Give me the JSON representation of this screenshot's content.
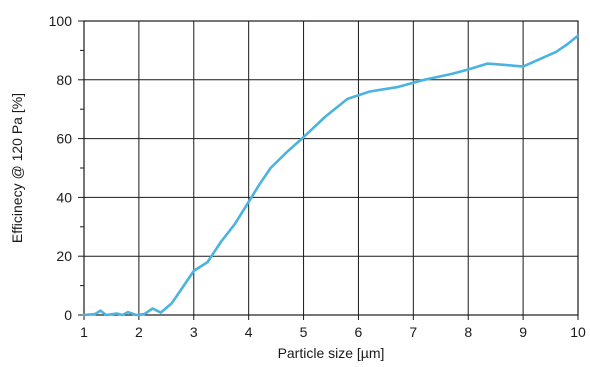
{
  "chart_data": {
    "type": "line",
    "title": "",
    "xlabel": "Particle size [µm]",
    "ylabel": "Efficinecy @ 120 Pa [%]",
    "xlim": [
      1,
      10
    ],
    "ylim": [
      0,
      100
    ],
    "x_ticks": [
      1,
      2,
      3,
      4,
      5,
      6,
      7,
      8,
      9,
      10
    ],
    "y_ticks": [
      0,
      20,
      40,
      60,
      80,
      100
    ],
    "x_tick_labels": [
      "1",
      "2",
      "3",
      "4",
      "5",
      "6",
      "7",
      "8",
      "9",
      "10"
    ],
    "y_tick_labels": [
      "0",
      "20",
      "40",
      "60",
      "80",
      "100"
    ],
    "grid": true,
    "line_color": "#4bb3e0",
    "series": [
      {
        "x": [
          1.0,
          1.2,
          1.3,
          1.4,
          1.6,
          1.7,
          1.8,
          1.95,
          2.1,
          2.25,
          2.4,
          2.6,
          2.8,
          3.0,
          3.25,
          3.5,
          3.75,
          4.0,
          4.2,
          4.4,
          4.7,
          5.0,
          5.4,
          5.8,
          6.2,
          6.7,
          7.2,
          7.7,
          8.0,
          8.35,
          8.7,
          9.0,
          9.3,
          9.6,
          9.8,
          10.0
        ],
        "y": [
          0.0,
          0.3,
          1.5,
          0.0,
          0.5,
          0.0,
          1.0,
          0.0,
          0.3,
          2.2,
          0.8,
          4.0,
          9.5,
          15.0,
          18.0,
          25.0,
          31.0,
          38.5,
          44.5,
          50.0,
          55.5,
          60.5,
          67.5,
          73.5,
          76.0,
          77.5,
          80.0,
          82.0,
          83.5,
          85.5,
          85.0,
          84.5,
          87.0,
          89.5,
          92.0,
          95.0
        ]
      }
    ]
  }
}
